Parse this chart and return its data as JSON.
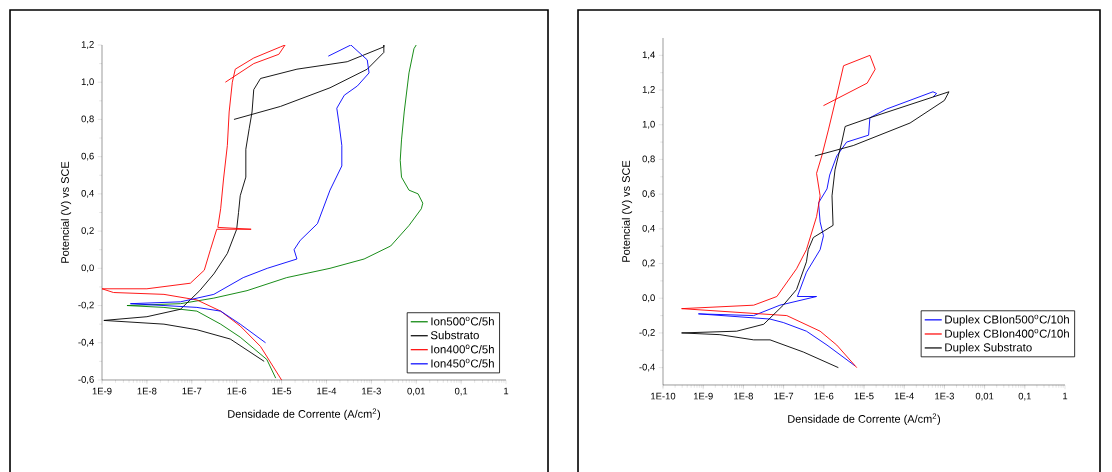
{
  "chart_data": [
    {
      "type": "line",
      "xlabel": "Densidade de Corrente (A/cm$^{2}$)",
      "ylabel": "Potencial (V) vs SCE",
      "log": "x",
      "legend": "bottom right",
      "xlim": [
        1e-09,
        1
      ],
      "ylim": [
        -0.6,
        1.2
      ],
      "xticks": [
        {
          "value": 1e-09,
          "label": "1E-9"
        },
        {
          "value": 1e-08,
          "label": "1E-8"
        },
        {
          "value": 1e-07,
          "label": "1E-7"
        },
        {
          "value": 1e-06,
          "label": "1E-6"
        },
        {
          "value": 1e-05,
          "label": "1E-5"
        },
        {
          "value": 0.0001,
          "label": "1E-4"
        },
        {
          "value": 0.001,
          "label": "1E-3"
        },
        {
          "value": 0.01,
          "label": "0,01"
        },
        {
          "value": 0.1,
          "label": "0,1"
        },
        1
      ],
      "yticks": [
        {
          "value": -0.6,
          "label": "-0,6"
        },
        {
          "value": -0.4,
          "label": "-0,4"
        },
        {
          "value": -0.2,
          "label": "-0,2"
        },
        {
          "value": 0,
          "label": "0,0"
        },
        {
          "value": 0.2,
          "label": "0,2"
        },
        {
          "value": 0.4,
          "label": "0,4"
        },
        {
          "value": 0.6,
          "label": "0,6"
        },
        {
          "value": 0.8,
          "label": "0,8"
        },
        {
          "value": 1.0,
          "label": "1,0"
        },
        {
          "value": 1.2,
          "label": "1,2"
        }
      ],
      "series": [
        {
          "name": "Ion500$^{o}$C/5h",
          "color": "#008000",
          "x": [
            7.4e-06,
            4.7e-06,
            1.2e-06,
            4.4e-07,
            1.3e-07,
            2.4e-08,
            3.6e-09,
            5.6e-08,
            3.1e-07,
            1.7e-06,
            1.3e-05,
            0.00012,
            0.00069,
            0.0027,
            0.0069,
            0.013,
            0.014,
            0.011,
            0.0069,
            0.0047,
            0.0044,
            0.0047,
            0.0054,
            0.0069,
            0.0089,
            0.01
          ],
          "values": [
            -0.59,
            -0.49,
            -0.37,
            -0.3,
            -0.23,
            -0.21,
            -0.2,
            -0.19,
            -0.16,
            -0.12,
            -0.05,
            0.0,
            0.05,
            0.12,
            0.23,
            0.32,
            0.35,
            0.4,
            0.42,
            0.49,
            0.58,
            0.69,
            0.84,
            1.05,
            1.18,
            1.2
          ]
        },
        {
          "name": "Substrato",
          "color": "#000000",
          "x": [
            4.1e-06,
            7.2e-07,
            1.3e-07,
            2.4e-08,
            1.1e-09,
            1e-08,
            5.6e-08,
            1.5e-07,
            3.1e-07,
            6.2e-07,
            1e-06,
            1.1e-06,
            1.2e-06,
            1.6e-06,
            1.6e-06,
            1.9e-06,
            2.2e-06,
            2.4e-06,
            3.4e-06,
            2.2e-05,
            0.00029,
            0.0019,
            0.0019,
            0.0019,
            0.00081,
            0.00012,
            9.5e-06,
            8.7e-07
          ],
          "values": [
            -0.5,
            -0.38,
            -0.33,
            -0.3,
            -0.28,
            -0.26,
            -0.22,
            -0.12,
            -0.03,
            0.08,
            0.21,
            0.3,
            0.39,
            0.49,
            0.64,
            0.75,
            0.84,
            0.96,
            1.02,
            1.07,
            1.11,
            1.19,
            1.2,
            1.16,
            1.07,
            0.97,
            0.87,
            0.8
          ]
        },
        {
          "name": "Ion400$^{o}$C/5h",
          "color": "#ff0000",
          "x": [
            1e-05,
            3.4e-06,
            1.2e-06,
            4.4e-07,
            1.3e-07,
            2.4e-08,
            1.8e-09,
            1e-09,
            1e-08,
            9.3e-08,
            1.9e-07,
            2.6e-07,
            3.6e-07,
            2.1e-06,
            3.8e-07,
            4.4e-07,
            5.1e-07,
            6.2e-07,
            6.8e-07,
            8e-07,
            9.3e-07,
            2.4e-06,
            9.5e-06,
            1.2e-05,
            8.7e-06,
            2.4e-06,
            5.6e-07
          ],
          "values": [
            -0.6,
            -0.42,
            -0.31,
            -0.23,
            -0.17,
            -0.14,
            -0.13,
            -0.11,
            -0.11,
            -0.08,
            -0.01,
            0.1,
            0.21,
            0.21,
            0.22,
            0.32,
            0.48,
            0.66,
            0.84,
            1.0,
            1.07,
            1.13,
            1.19,
            1.2,
            1.15,
            1.1,
            1.0
          ]
        },
        {
          "name": "Ion450$^{o}$C/5h",
          "color": "#0000ff",
          "x": [
            4.4e-06,
            1.2e-06,
            4.4e-07,
            1.3e-07,
            2.4e-08,
            4.3e-09,
            5.6e-08,
            3.1e-07,
            1.4e-06,
            4.8e-06,
            2.2e-05,
            1.9e-05,
            2.6e-05,
            6.3e-05,
            0.00012,
            0.00022,
            0.00022,
            0.00019,
            0.00017,
            0.00025,
            0.00049,
            0.00089,
            0.00081,
            0.00035,
            0.00011
          ],
          "values": [
            -0.4,
            -0.3,
            -0.23,
            -0.21,
            -0.2,
            -0.19,
            -0.18,
            -0.14,
            -0.05,
            0.0,
            0.05,
            0.1,
            0.15,
            0.24,
            0.42,
            0.55,
            0.66,
            0.78,
            0.86,
            0.93,
            0.98,
            1.05,
            1.12,
            1.2,
            1.14
          ]
        }
      ]
    },
    {
      "type": "line",
      "xlabel": "Densidade de Corrente (A/cm$^{2}$)",
      "ylabel": "Potencial (V) vs SCE",
      "log": "x",
      "legend": "bottom right",
      "xlim": [
        1e-10,
        1
      ],
      "ylim": [
        -0.5,
        1.5
      ],
      "xticks": [
        {
          "value": 1e-10,
          "label": "1E-10"
        },
        {
          "value": 1e-09,
          "label": "1E-9"
        },
        {
          "value": 1e-08,
          "label": "1E-8"
        },
        {
          "value": 1e-07,
          "label": "1E-7"
        },
        {
          "value": 1e-06,
          "label": "1E-6"
        },
        {
          "value": 1e-05,
          "label": "1E-5"
        },
        {
          "value": 0.0001,
          "label": "1E-4"
        },
        {
          "value": 0.001,
          "label": "1E-3"
        },
        {
          "value": 0.01,
          "label": "0,01"
        },
        {
          "value": 0.1,
          "label": "0,1"
        },
        1
      ],
      "yticks": [
        {
          "value": -0.4,
          "label": "-0,4"
        },
        {
          "value": -0.2,
          "label": "-0,2"
        },
        {
          "value": 0,
          "label": "0,0"
        },
        {
          "value": 0.2,
          "label": "0,2"
        },
        {
          "value": 0.4,
          "label": "0,4"
        },
        {
          "value": 0.6,
          "label": "0,6"
        },
        {
          "value": 0.8,
          "label": "0,8"
        },
        {
          "value": 1.0,
          "label": "1,0"
        },
        {
          "value": 1.2,
          "label": "1,2"
        },
        {
          "value": 1.4,
          "label": "1,4"
        }
      ],
      "series": [
        {
          "name": "Duplex CBIon500$^{o}$C/10h",
          "color": "#0000ff",
          "x": [
            6e-06,
            1.2e-06,
            3.7e-07,
            9.8e-08,
            4.6e-08,
            7.6e-10,
            1.8e-08,
            8.1e-08,
            6.6e-07,
            2.2e-07,
            3.7e-07,
            8.1e-07,
            9.8e-07,
            8.1e-07,
            7.4e-07,
            1.2e-06,
            1.4e-06,
            2.1e-06,
            3.7e-06,
            1.3e-05,
            1.4e-05,
            3.6e-05,
            0.00052,
            0.00064,
            0.00052
          ],
          "values": [
            -0.39,
            -0.27,
            -0.19,
            -0.14,
            -0.12,
            -0.09,
            -0.1,
            -0.04,
            0.01,
            0.01,
            0.15,
            0.28,
            0.36,
            0.44,
            0.55,
            0.63,
            0.71,
            0.82,
            0.9,
            0.94,
            1.04,
            1.09,
            1.19,
            1.18,
            1.16
          ]
        },
        {
          "name": "Duplex CBIon400$^{o}$C/10h",
          "color": "#ff0000",
          "x": [
            6.6e-06,
            2.1e-06,
            8.1e-07,
            1.2e-07,
            2.9e-10,
            1.8e-08,
            6.8e-08,
            2.1e-07,
            3.7e-07,
            6.6e-07,
            8.1e-07,
            6.6e-07,
            8.9e-07,
            1.3e-06,
            2.1e-06,
            3.1e-06,
            1.4e-05,
            1.9e-05,
            1.2e-05,
            9.8e-07
          ],
          "values": [
            -0.4,
            -0.27,
            -0.19,
            -0.1,
            -0.06,
            -0.04,
            0.01,
            0.17,
            0.28,
            0.47,
            0.59,
            0.72,
            0.82,
            0.97,
            1.17,
            1.34,
            1.4,
            1.32,
            1.24,
            1.11
          ]
        },
        {
          "name": "Duplex Substrato",
          "color": "#000000",
          "x": [
            2.3e-06,
            3.1e-07,
            4.6e-08,
            1.8e-08,
            2.6e-09,
            2.9e-10,
            6.8e-09,
            3.2e-08,
            9.8e-08,
            2.1e-07,
            3.7e-07,
            4.1e-07,
            5.5e-07,
            1.7e-06,
            1.6e-06,
            1.9e-06,
            2.3e-06,
            2.8e-06,
            3.4e-06,
            1.4e-05,
            0.0013,
            0.001,
            0.00014,
            5.4e-06,
            6e-07
          ],
          "values": [
            -0.4,
            -0.31,
            -0.24,
            -0.24,
            -0.21,
            -0.2,
            -0.19,
            -0.15,
            -0.04,
            0.05,
            0.21,
            0.28,
            0.35,
            0.42,
            0.59,
            0.74,
            0.82,
            0.9,
            0.99,
            1.04,
            1.19,
            1.14,
            1.01,
            0.88,
            0.82
          ]
        }
      ]
    }
  ]
}
